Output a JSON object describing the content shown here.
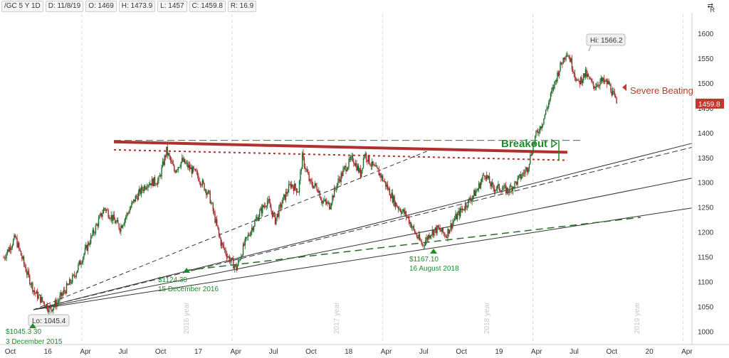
{
  "toolbar": {
    "symbol": "/GC 5 Y 1D",
    "date": "D: 11/8/19",
    "open": "O: 1469",
    "high": "H: 1473.9",
    "low": "L: 1457",
    "close": "C: 1459.8",
    "range": "R: 16.9"
  },
  "icons": {
    "settings": "swap-arrows-icon",
    "corner_glyph": "⇄",
    "corner_letter": "R"
  },
  "colors": {
    "candle_up": "#1f6b2a",
    "candle_down": "#a52a2a",
    "resistance": "#b03030",
    "breakout": "#1e8c2a",
    "price_tag": "#c0392b"
  },
  "chart_data": {
    "type": "candlestick",
    "instrument": "/GC",
    "ylim": [
      975,
      1640
    ],
    "y_ticks": [
      1000,
      1050,
      1100,
      1150,
      1200,
      1250,
      1300,
      1350,
      1400,
      1450,
      1500,
      1550,
      1600
    ],
    "x_ticks": [
      "Oct",
      "16",
      "Apr",
      "Jul",
      "Oct",
      "17",
      "Apr",
      "Jul",
      "Oct",
      "18",
      "Apr",
      "Jul",
      "Oct",
      "19",
      "Apr",
      "Jul",
      "Oct",
      "20",
      "Apr"
    ],
    "year_markers": [
      "2016 year",
      "2017 year",
      "2018 year",
      "2019 year"
    ],
    "last_price": "1459.8",
    "price_path": [
      [
        0,
        1150
      ],
      [
        3,
        1190
      ],
      [
        6,
        1120
      ],
      [
        8,
        1080
      ],
      [
        12,
        1045
      ],
      [
        14,
        1062
      ],
      [
        18,
        1110
      ],
      [
        22,
        1180
      ],
      [
        26,
        1250
      ],
      [
        30,
        1210
      ],
      [
        34,
        1270
      ],
      [
        37,
        1300
      ],
      [
        40,
        1305
      ],
      [
        42,
        1365
      ],
      [
        44,
        1325
      ],
      [
        46,
        1345
      ],
      [
        50,
        1315
      ],
      [
        53,
        1275
      ],
      [
        56,
        1180
      ],
      [
        58,
        1150
      ],
      [
        60,
        1128
      ],
      [
        62,
        1175
      ],
      [
        64,
        1210
      ],
      [
        66,
        1240
      ],
      [
        68,
        1265
      ],
      [
        70,
        1225
      ],
      [
        72,
        1265
      ],
      [
        74,
        1298
      ],
      [
        76,
        1285
      ],
      [
        77,
        1352
      ],
      [
        79,
        1300
      ],
      [
        81,
        1290
      ],
      [
        82,
        1265
      ],
      [
        84,
        1255
      ],
      [
        86,
        1300
      ],
      [
        88,
        1330
      ],
      [
        90,
        1350
      ],
      [
        92,
        1318
      ],
      [
        93,
        1360
      ],
      [
        95,
        1335
      ],
      [
        97,
        1318
      ],
      [
        99,
        1290
      ],
      [
        101,
        1258
      ],
      [
        104,
        1233
      ],
      [
        106,
        1200
      ],
      [
        108,
        1175
      ],
      [
        110,
        1200
      ],
      [
        112,
        1208
      ],
      [
        114,
        1195
      ],
      [
        116,
        1225
      ],
      [
        118,
        1245
      ],
      [
        120,
        1265
      ],
      [
        122,
        1285
      ],
      [
        124,
        1320
      ],
      [
        126,
        1290
      ],
      [
        128,
        1290
      ],
      [
        130,
        1285
      ],
      [
        132,
        1300
      ],
      [
        135,
        1330
      ],
      [
        137,
        1392
      ],
      [
        139,
        1425
      ],
      [
        141,
        1475
      ],
      [
        143,
        1525
      ],
      [
        145,
        1565
      ],
      [
        146,
        1550
      ],
      [
        148,
        1500
      ],
      [
        150,
        1520
      ],
      [
        152,
        1495
      ],
      [
        154,
        1505
      ],
      [
        156,
        1500
      ],
      [
        158,
        1460
      ]
    ],
    "annotations": {
      "high": "Hi: 1566.2",
      "low": "Lo: 1045.4",
      "low_label_price": "$1045.3 30",
      "low_label_date": "3 December 2015",
      "mid_label_price": "$1124.30",
      "mid_label_date": "15 December 2016",
      "aug_label_price": "$1167.10",
      "aug_label_date": "16 August 2018",
      "breakout": "Breakout",
      "severe": "Severe Beating"
    },
    "lines": {
      "resistance": [
        [
          1375,
          1360
        ],
        "solid"
      ],
      "resistance_dotted": [
        [
          1367,
          1350
        ],
        "dotted"
      ],
      "breakout_level": [
        1385,
        1385
      ],
      "trend_1": [
        [
          1045,
          1380
        ]
      ],
      "trend_2": [
        [
          1045,
          1310
        ]
      ],
      "trend_3": [
        [
          1045,
          1250
        ]
      ],
      "trend_dashed": [
        [
          1045,
          1385
        ]
      ]
    },
    "grid": "vertical dashed",
    "legend": "none"
  }
}
